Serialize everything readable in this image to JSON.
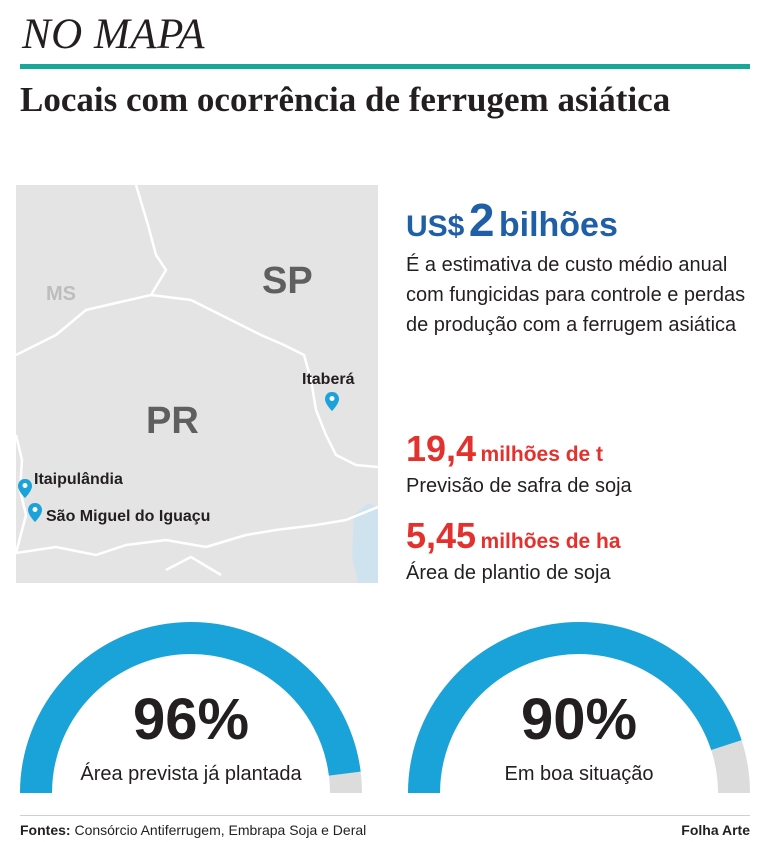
{
  "header": {
    "kicker": "NO MAPA",
    "title": "Locais com ocorrência de ferrugem asiática"
  },
  "map": {
    "states": {
      "ms": "MS",
      "sp": "SP",
      "pr": "PR"
    },
    "locations": [
      {
        "name": "Itaberá"
      },
      {
        "name": "Itaipulândia"
      },
      {
        "name": "São Miguel do Iguaçu"
      }
    ],
    "colors": {
      "land_main": "#e4e4e4",
      "land_other": "#ececec",
      "border": "#ffffff",
      "water": "#cfe3ef",
      "pin": "#1aa3d9"
    }
  },
  "highlight": {
    "currency": "US$",
    "value": "2",
    "unit": "bilhões",
    "description": "É a estimativa de custo médio anual com fungicidas para controle e perdas de produção com a ferrugem asiática"
  },
  "stats": [
    {
      "value": "19,4",
      "unit": "milhões de t",
      "label": "Previsão de safra de soja"
    },
    {
      "value": "5,45",
      "unit": "milhões de ha",
      "label": "Área de plantio de soja"
    }
  ],
  "gauges": [
    {
      "value": "96%",
      "fraction": 0.96,
      "label": "Área prevista já plantada"
    },
    {
      "value": "90%",
      "fraction": 0.9,
      "label": "Em boa situação"
    }
  ],
  "colors": {
    "accent_teal": "#17a89a",
    "money_blue": "#1f5fa8",
    "stat_red": "#e3312d",
    "gauge_fill": "#1aa3d9",
    "gauge_track": "#dcdcdc"
  },
  "footer": {
    "sources_label": "Fontes:",
    "sources": "Consórcio Antiferrugem, Embrapa Soja e Deral",
    "credit": "Folha Arte"
  }
}
